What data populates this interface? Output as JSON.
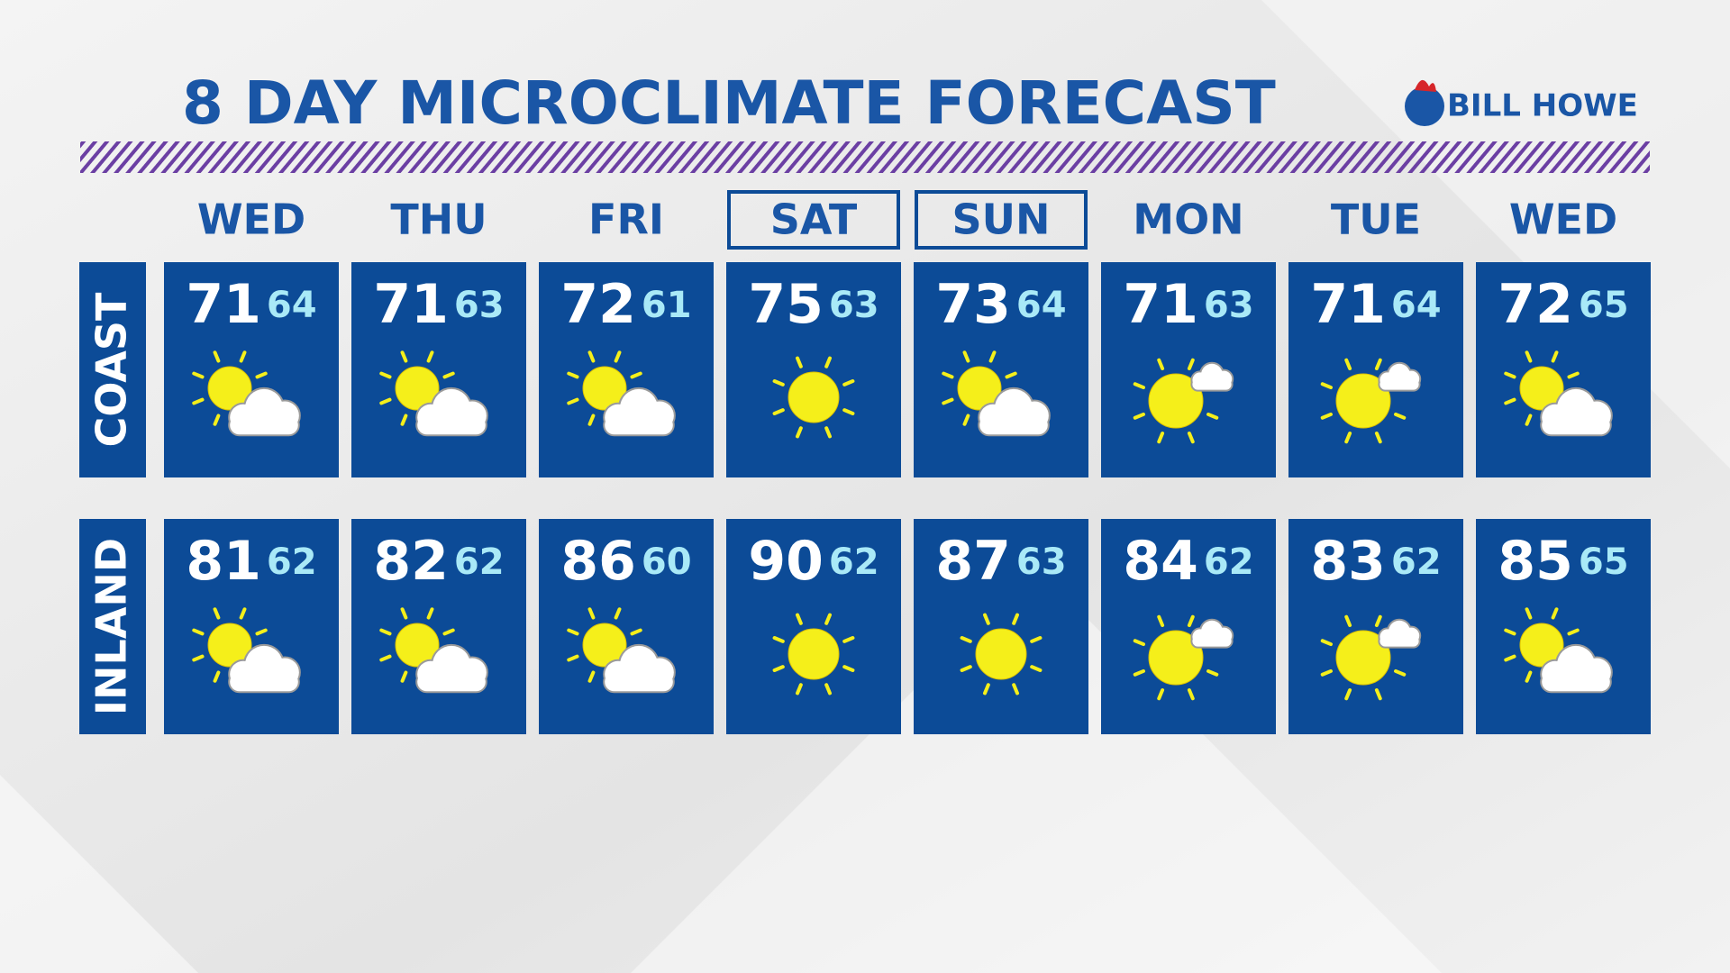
{
  "header": {
    "title": "8 DAY MICROCLIMATE FORECAST",
    "sponsor": "BILL HOWE"
  },
  "days": [
    {
      "label": "WED",
      "outlined": false
    },
    {
      "label": "THU",
      "outlined": false
    },
    {
      "label": "FRI",
      "outlined": false
    },
    {
      "label": "SAT",
      "outlined": true
    },
    {
      "label": "SUN",
      "outlined": true
    },
    {
      "label": "MON",
      "outlined": false
    },
    {
      "label": "TUE",
      "outlined": false
    },
    {
      "label": "WED",
      "outlined": false
    }
  ],
  "rows": [
    {
      "label": "COAST",
      "cells": [
        {
          "high": 71,
          "low": 64,
          "icon": "partly-cloudy"
        },
        {
          "high": 71,
          "low": 63,
          "icon": "partly-cloudy"
        },
        {
          "high": 72,
          "low": 61,
          "icon": "partly-cloudy"
        },
        {
          "high": 75,
          "low": 63,
          "icon": "sunny"
        },
        {
          "high": 73,
          "low": 64,
          "icon": "partly-cloudy"
        },
        {
          "high": 71,
          "low": 63,
          "icon": "mostly-sunny"
        },
        {
          "high": 71,
          "low": 64,
          "icon": "mostly-sunny"
        },
        {
          "high": 72,
          "low": 65,
          "icon": "partly-cloudy"
        }
      ]
    },
    {
      "label": "INLAND",
      "cells": [
        {
          "high": 81,
          "low": 62,
          "icon": "partly-cloudy"
        },
        {
          "high": 82,
          "low": 62,
          "icon": "partly-cloudy"
        },
        {
          "high": 86,
          "low": 60,
          "icon": "partly-cloudy"
        },
        {
          "high": 90,
          "low": 62,
          "icon": "sunny"
        },
        {
          "high": 87,
          "low": 63,
          "icon": "sunny"
        },
        {
          "high": 84,
          "low": 62,
          "icon": "mostly-sunny"
        },
        {
          "high": 83,
          "low": 62,
          "icon": "mostly-sunny"
        },
        {
          "high": 85,
          "low": 65,
          "icon": "partly-cloudy"
        }
      ]
    }
  ]
}
